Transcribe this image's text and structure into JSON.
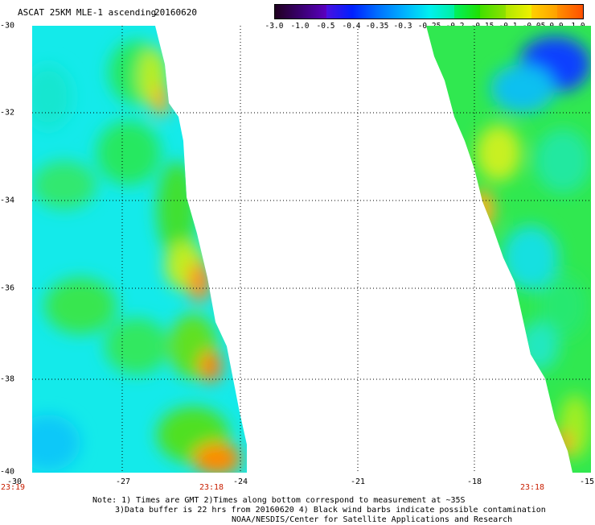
{
  "header": {
    "title": "ASCAT 25KM MLE-1 ascending",
    "date": "20160620"
  },
  "colorbar": {
    "labels": [
      "-3.0",
      "-1.0",
      "-0.5",
      "-0.4",
      "-0.35",
      "-0.3",
      "-0.25",
      "-0.2",
      "-0.15",
      "-0.1",
      "-0.05",
      "0.0",
      "1.0"
    ],
    "colors": [
      "#2a0030",
      "#5a00a0",
      "#0020ff",
      "#0070ff",
      "#00b0ff",
      "#00f0f0",
      "#00f0a0",
      "#20e000",
      "#90e000",
      "#e0f000",
      "#ffc000",
      "#ff6000",
      "#ff1000"
    ]
  },
  "map": {
    "lat_labels": [
      "-30",
      "-32",
      "-34",
      "-36",
      "-38",
      "-40"
    ],
    "lon_labels": [
      "-30",
      "-27",
      "-24",
      "-21",
      "-18",
      "-15"
    ],
    "time_labels": [
      "23:19",
      "23:18",
      "23:18"
    ]
  },
  "footer": {
    "line1": "Note: 1) Times are GMT 2)Times along bottom correspond to measurement at ~35S",
    "line2": "3)Data buffer is 22 hrs from 20160620 4) Black wind barbs indicate possible contamination",
    "line3": "NOAA/NESDIS/Center for Satellite Applications and Research"
  }
}
